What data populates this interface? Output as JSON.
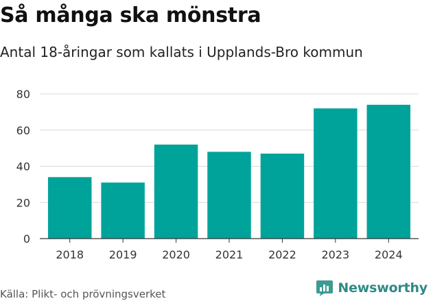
{
  "chart_data": {
    "type": "bar",
    "title": "Så många ska mönstra",
    "subtitle": "Antal 18-åringar som kallats i Upplands-Bro kommun",
    "categories": [
      "2018",
      "2019",
      "2020",
      "2021",
      "2022",
      "2023",
      "2024"
    ],
    "values": [
      34,
      31,
      52,
      48,
      47,
      72,
      74
    ],
    "xlabel": "",
    "ylabel": "",
    "ylim": [
      0,
      80
    ],
    "yticks": [
      0,
      20,
      40,
      60,
      80
    ],
    "ytick_labels": [
      "0",
      "20",
      "40",
      "60",
      "80"
    ],
    "grid": true,
    "bar_color": "#00a39a",
    "grid_color": "#d9d9d9",
    "axis_color": "#333333"
  },
  "footer": {
    "source": "Källa: Plikt- och prövningsverket",
    "brand": "Newsworthy",
    "brand_color": "#2f8a84"
  }
}
